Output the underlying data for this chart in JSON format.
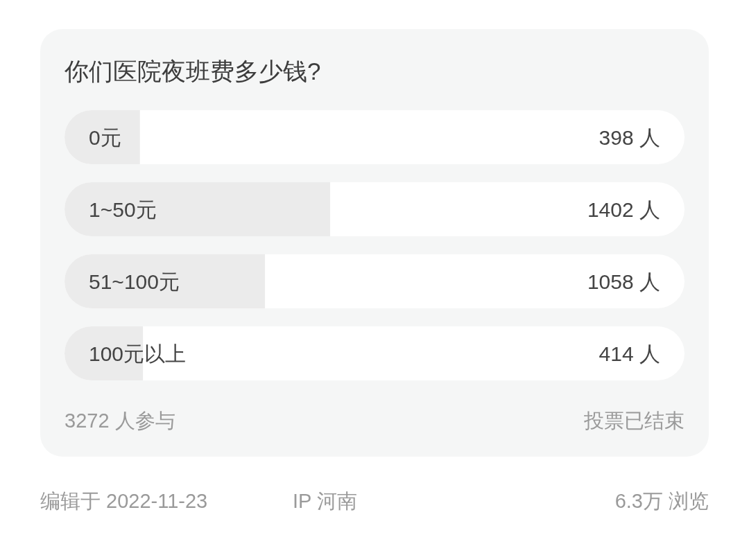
{
  "chart_data": {
    "type": "bar",
    "orientation": "horizontal",
    "title": "你们医院夜班费多少钱?",
    "categories": [
      "0元",
      "1~50元",
      "51~100元",
      "100元以上"
    ],
    "values": [
      398,
      1402,
      1058,
      414
    ],
    "color": "#ebebeb",
    "value_labels": [
      "398 人",
      "1402 人",
      "1058 人",
      "414 人"
    ],
    "xlim": [
      0,
      3272
    ],
    "tick_labels": "y",
    "annotations": [
      "3272 人参与",
      "投票已结束",
      "编辑于 2022-11-23",
      "IP 河南",
      "6.3万 浏览"
    ]
  }
}
